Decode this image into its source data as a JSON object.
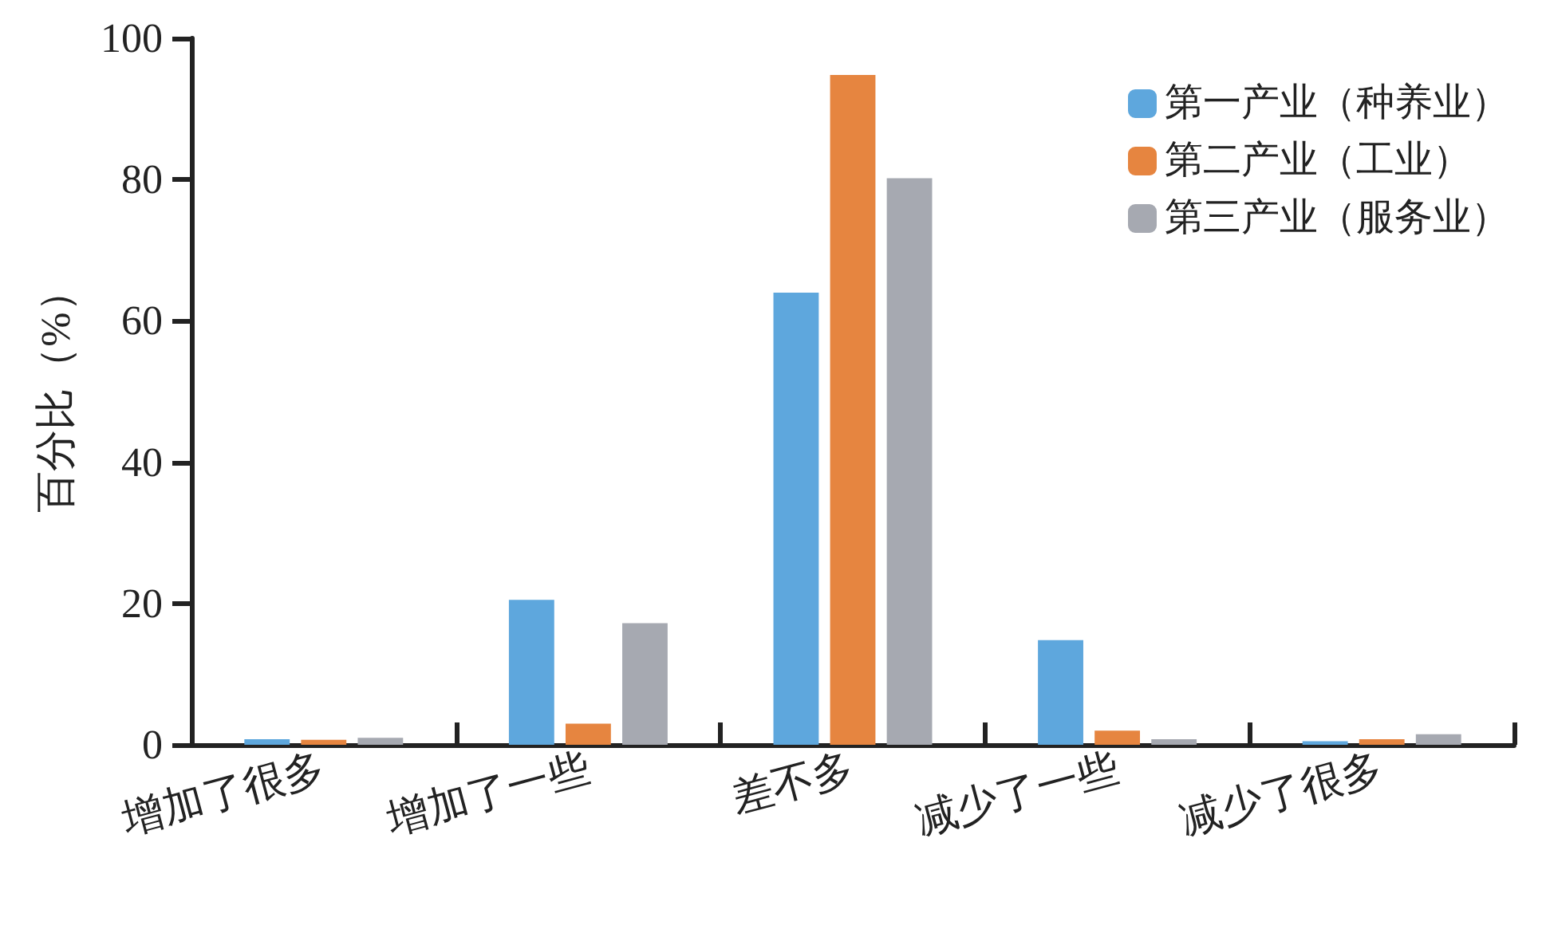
{
  "chart_data": {
    "type": "bar",
    "ylabel": "百分比（%）",
    "categories": [
      "增加了很多",
      "增加了一些",
      "差不多",
      "减少了一些",
      "减少了很多"
    ],
    "series": [
      {
        "name": "第一产业（种养业）",
        "color": "#5ea7dd",
        "values": [
          0.8,
          20.5,
          64,
          14.8,
          0.5
        ]
      },
      {
        "name": "第二产业（工业）",
        "color": "#e68540",
        "values": [
          0.7,
          3,
          94.8,
          2,
          0.8
        ]
      },
      {
        "name": "第三产业（服务业）",
        "color": "#a6a9b1",
        "values": [
          1,
          17.2,
          80.2,
          0.8,
          1.5
        ]
      }
    ],
    "ylim": [
      0,
      100
    ],
    "yticks": [
      0,
      20,
      40,
      60,
      80,
      100
    ],
    "grid": false,
    "legend": "top right"
  }
}
